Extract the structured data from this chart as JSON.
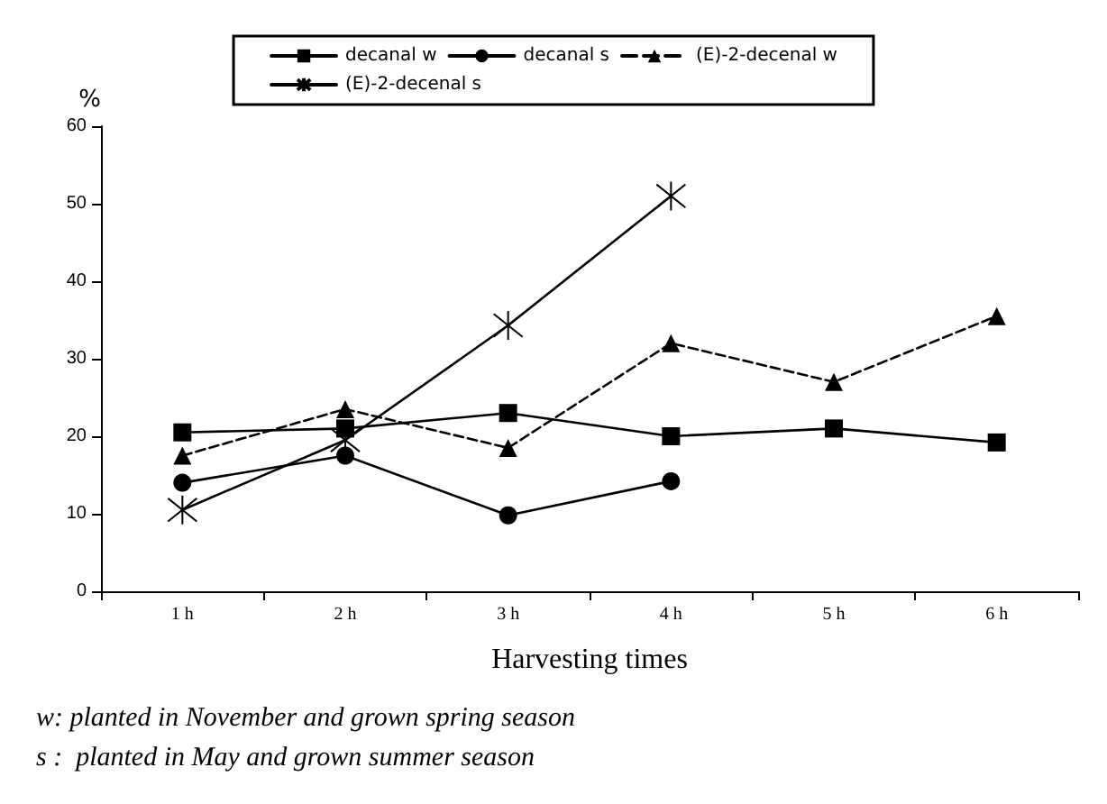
{
  "chart_data": {
    "type": "line",
    "ylabel": "%",
    "xlabel": "Harvesting times",
    "categories": [
      "1 h",
      "2 h",
      "3 h",
      "4 h",
      "5 h",
      "6 h"
    ],
    "series": [
      {
        "name": "decanal w",
        "color": "#000000",
        "marker": "square",
        "line_style": "solid",
        "values": [
          20.5,
          21,
          23,
          20,
          21,
          19.2
        ]
      },
      {
        "name": "decanal s",
        "color": "#000000",
        "marker": "circle",
        "line_style": "solid",
        "values": [
          14,
          17.5,
          9.8,
          14.2,
          null,
          null
        ]
      },
      {
        "name": "(E)-2-decenal w",
        "color": "#000000",
        "marker": "triangle",
        "line_style": "dashed",
        "values": [
          17.5,
          23.5,
          18.5,
          32,
          27,
          35.5
        ]
      },
      {
        "name": "(E)-2-decenal s",
        "color": "#000000",
        "marker": "cross",
        "line_style": "solid",
        "values": [
          10.5,
          19.5,
          34.3,
          51,
          null,
          null
        ]
      }
    ],
    "ylim": [
      0,
      60
    ],
    "yticks": [
      0,
      10,
      20,
      30,
      40,
      50,
      60
    ],
    "grid": false,
    "legend": "top",
    "annotations": [
      "w: planted in November and grown spring season",
      "s :  planted in May and grown summer season"
    ]
  }
}
